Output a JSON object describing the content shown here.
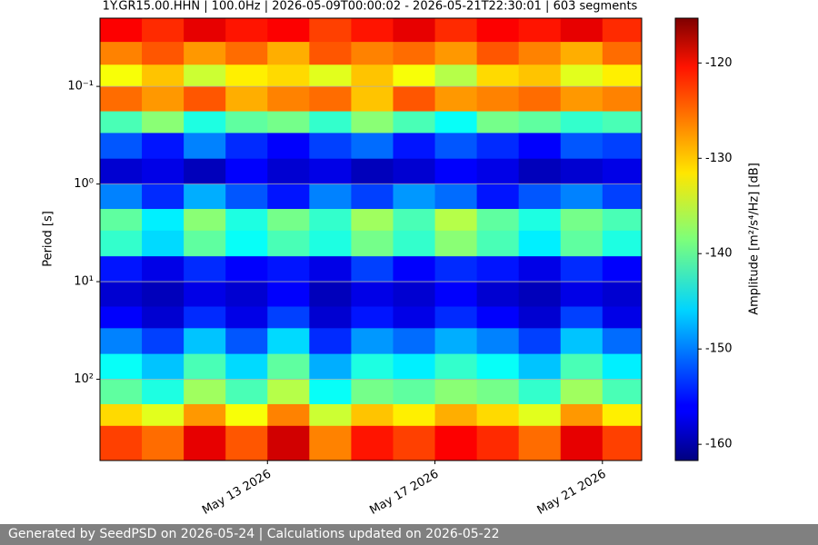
{
  "chart_data": {
    "type": "heatmap",
    "title": "1Y.GR15.00.HHN | 100.0Hz | 2026-05-09T00:00:02 - 2026-05-21T22:30:01 | 603 segments",
    "xlim": [
      "2026-05-09T00:00:02",
      "2026-05-21T22:30:01"
    ],
    "xticks": [
      {
        "value": "2026-05-13",
        "label": "May 13 2026"
      },
      {
        "value": "2026-05-17",
        "label": "May 17 2026"
      },
      {
        "value": "2026-05-21",
        "label": "May 21 2026"
      }
    ],
    "x": [
      "2026-05-09",
      "2026-05-10",
      "2026-05-11",
      "2026-05-12",
      "2026-05-13",
      "2026-05-14",
      "2026-05-15",
      "2026-05-16",
      "2026-05-17",
      "2026-05-18",
      "2026-05-19",
      "2026-05-20",
      "2026-05-21"
    ],
    "ylabel": "Period [s]",
    "ylog": true,
    "yinverted": true,
    "grid": true,
    "ylim": [
      0.02,
      680
    ],
    "yticks": [
      {
        "value": 0.1,
        "label": "10⁻¹"
      },
      {
        "value": 1,
        "label": "10⁰"
      },
      {
        "value": 10,
        "label": "10¹"
      },
      {
        "value": 100,
        "label": "10²"
      }
    ],
    "y_bins": [
      0.02,
      0.035,
      0.06,
      0.1,
      0.18,
      0.3,
      0.55,
      1,
      1.8,
      3,
      5.5,
      10,
      18,
      30,
      55,
      100,
      180,
      300,
      680
    ],
    "values": [
      [
        -121,
        -123,
        -120,
        -122,
        -121,
        -124,
        -122,
        -120,
        -123,
        -121,
        -122,
        -120,
        -123
      ],
      [
        -127,
        -125,
        -128,
        -126,
        -129,
        -125,
        -127,
        -126,
        -128,
        -125,
        -127,
        -129,
        -126
      ],
      [
        -133,
        -130,
        -135,
        -132,
        -131,
        -134,
        -130,
        -133,
        -136,
        -131,
        -130,
        -134,
        -132
      ],
      [
        -126,
        -128,
        -125,
        -129,
        -127,
        -126,
        -130,
        -125,
        -128,
        -127,
        -126,
        -128,
        -127
      ],
      [
        -141,
        -138,
        -143,
        -140,
        -139,
        -142,
        -138,
        -141,
        -144,
        -139,
        -140,
        -142,
        -141
      ],
      [
        -152,
        -155,
        -150,
        -154,
        -156,
        -153,
        -151,
        -155,
        -152,
        -154,
        -156,
        -152,
        -153
      ],
      [
        -158,
        -157,
        -159,
        -156,
        -158,
        -157,
        -159,
        -158,
        -156,
        -157,
        -159,
        -158,
        -157
      ],
      [
        -150,
        -154,
        -148,
        -152,
        -155,
        -150,
        -153,
        -149,
        -151,
        -155,
        -152,
        -150,
        -153
      ],
      [
        -140,
        -145,
        -138,
        -143,
        -139,
        -142,
        -137,
        -141,
        -136,
        -140,
        -143,
        -139,
        -141
      ],
      [
        -142,
        -146,
        -140,
        -144,
        -141,
        -143,
        -139,
        -142,
        -138,
        -141,
        -145,
        -140,
        -143
      ],
      [
        -155,
        -157,
        -154,
        -156,
        -155,
        -157,
        -153,
        -156,
        -154,
        -155,
        -157,
        -154,
        -156
      ],
      [
        -158,
        -159,
        -157,
        -158,
        -156,
        -159,
        -157,
        -158,
        -156,
        -158,
        -159,
        -157,
        -158
      ],
      [
        -156,
        -158,
        -154,
        -157,
        -153,
        -158,
        -155,
        -157,
        -154,
        -156,
        -158,
        -153,
        -157
      ],
      [
        -150,
        -153,
        -147,
        -152,
        -146,
        -154,
        -149,
        -151,
        -148,
        -150,
        -153,
        -147,
        -151
      ],
      [
        -144,
        -147,
        -141,
        -146,
        -140,
        -148,
        -143,
        -145,
        -142,
        -144,
        -147,
        -141,
        -145
      ],
      [
        -140,
        -143,
        -137,
        -141,
        -136,
        -144,
        -139,
        -140,
        -138,
        -139,
        -142,
        -137,
        -141
      ],
      [
        -131,
        -134,
        -128,
        -133,
        -127,
        -135,
        -130,
        -132,
        -129,
        -131,
        -134,
        -128,
        -132
      ],
      [
        -124,
        -126,
        -120,
        -125,
        -119,
        -127,
        -122,
        -124,
        -121,
        -123,
        -126,
        -120,
        -124
      ]
    ],
    "colormap": "jet",
    "colorbar_label": "Amplitude [m²/s⁴/Hz] [dB]",
    "zlim": [
      -161.7,
      -115.3
    ],
    "zticks": [
      -120,
      -130,
      -140,
      -150,
      -160
    ]
  },
  "footer": "Generated by SeedPSD on 2026-05-24 | Calculations updated on 2026-05-22"
}
